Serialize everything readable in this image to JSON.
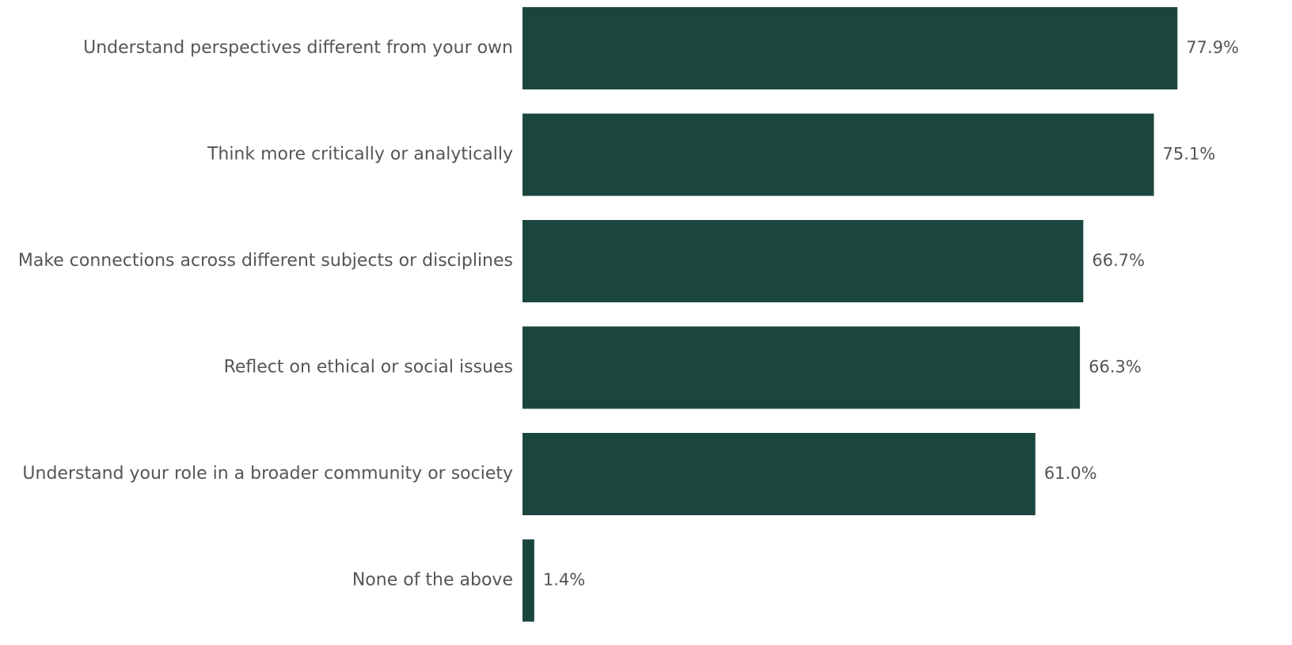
{
  "chart_data": {
    "type": "bar",
    "orientation": "horizontal",
    "categories": [
      "Understand perspectives different from your own",
      "Think more critically or analytically",
      "Make connections across different subjects or disciplines",
      "Reflect on ethical or social issues",
      "Understand your role in a broader community or society",
      "None of the above"
    ],
    "values": [
      77.9,
      75.1,
      66.7,
      66.3,
      61.0,
      1.4
    ],
    "value_labels": [
      "77.9%",
      "75.1%",
      "66.7%",
      "66.3%",
      "61.0%",
      "1.4%"
    ],
    "unit": "%",
    "xlim": [
      0,
      100
    ],
    "grid": false,
    "legend": "none",
    "colors": {
      "bar": "#1a463e",
      "text": "#555555",
      "background": "#ffffff"
    }
  }
}
